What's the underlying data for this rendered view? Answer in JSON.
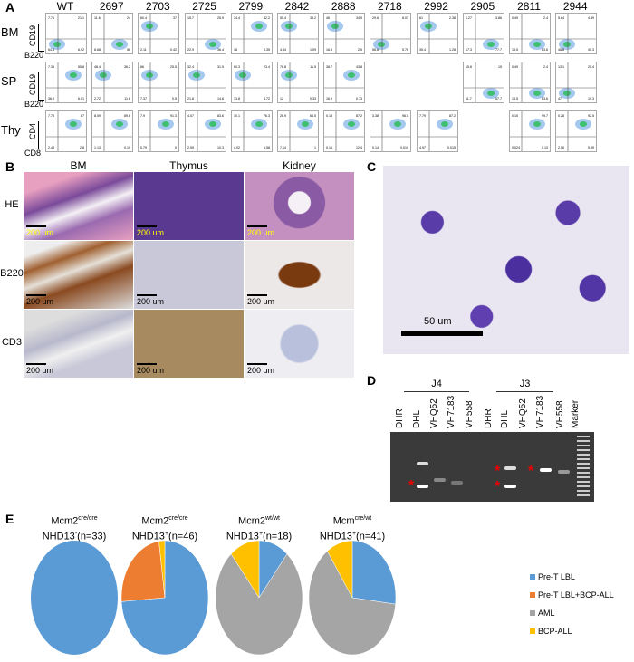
{
  "panels": {
    "a": "A",
    "b": "B",
    "c": "C",
    "d": "D",
    "e": "E"
  },
  "flow": {
    "samples": [
      "WT",
      "2697",
      "2703",
      "2725",
      "2799",
      "2842",
      "2888",
      "2718",
      "2992",
      "2905",
      "2811",
      "2944"
    ],
    "rows": [
      {
        "label": "BM",
        "y_axis": "CD19",
        "x_axis": "B220",
        "quadrants": [
          [
            7.76,
            21.1,
            64.3,
            6.92
          ],
          [
            11.6,
            24.0,
            8.68,
            56.0
          ],
          [
            60.4,
            37.0,
            2.11,
            0.42
          ],
          [
            15.7,
            25.9,
            22.9,
            36.4
          ],
          [
            34.4,
            42.2,
            18.0,
            5.35
          ],
          [
            55.4,
            39.2,
            4.44,
            1.09
          ],
          [
            46.0,
            34.9,
            16.8,
            2.5
          ],
          [
            29.6,
            8.03,
            56.6,
            5.76
          ],
          [
            61.0,
            2.38,
            35.4,
            1.28
          ],
          [
            1.27,
            3.86,
            17.3,
            77.7
          ],
          [
            0.49,
            2.4,
            13.5,
            83.6
          ],
          [
            5.64,
            4.89,
            48.8,
            40.3
          ]
        ]
      },
      {
        "label": "SP",
        "y_axis": "CD19",
        "x_axis": "B220",
        "quadrants": [
          [
            7.35,
            55.8,
            36.9,
            6.01
          ],
          [
            48.4,
            36.2,
            2.72,
            11.6
          ],
          [
            66.0,
            25.5,
            7.37,
            0.5
          ],
          [
            32.4,
            31.5,
            21.8,
            14.6
          ],
          [
            60.3,
            23.4,
            13.8,
            3.72
          ],
          [
            76.8,
            11.5,
            12.0,
            0.33
          ],
          [
            38.7,
            43.8,
            16.9,
            0.73
          ],
          null,
          null,
          [
            15.6,
            15.0,
            11.7,
            57.7
          ],
          [
            0.49,
            2.4,
            13.5,
            83.6
          ],
          [
            13.1,
            20.4,
            47.0,
            19.3
          ]
        ]
      },
      {
        "label": "Thy",
        "y_axis": "CD4",
        "x_axis": "CD8",
        "quadrants": [
          [
            7.75,
            87.0,
            2.43,
            2.8
          ],
          [
            8.09,
            89.6,
            1.13,
            0.19
          ],
          [
            7.9,
            91.3,
            0.79,
            0
          ],
          [
            4.07,
            83.6,
            2.59,
            10.3
          ],
          [
            10.1,
            76.3,
            4.02,
            6.58
          ],
          [
            26.9,
            65.5,
            7.14,
            1.0
          ],
          [
            0.18,
            87.2,
            0.16,
            12.4
          ],
          [
            3.38,
            96.5,
            0.14,
            0.019
          ],
          [
            7.79,
            87.2,
            4.97,
            0.015
          ],
          null,
          [
            0.15,
            99.7,
            0.024,
            0.13
          ],
          [
            0.28,
            92.5,
            2.06,
            5.89
          ]
        ]
      }
    ]
  },
  "histology": {
    "columns": [
      "BM",
      "Thymus",
      "Kidney"
    ],
    "rows": [
      "HE",
      "B220",
      "CD3"
    ],
    "scale": "200 um"
  },
  "smear": {
    "scale": "50 um"
  },
  "gel": {
    "groups": [
      "J4",
      "J3"
    ],
    "lanes": [
      "DHR",
      "DHL",
      "VHQ52",
      "VH7183",
      "VH558",
      "DHR",
      "DHL",
      "VHQ52",
      "VH7183",
      "VH558",
      "Marker"
    ],
    "marker": "*"
  },
  "chart_data": {
    "type": "pie",
    "legend_position": "right",
    "categories": [
      "Pre-T LBL",
      "Pre-T LBL+BCP-ALL",
      "AML",
      "BCP-ALL"
    ],
    "colors": [
      "#5b9bd5",
      "#ed7d31",
      "#a5a5a5",
      "#ffc000"
    ],
    "pies": [
      {
        "title_main": "Mcm2",
        "title_sup": "cre/cre",
        "title_line2": "NHD13",
        "title_line2_sup": "-",
        "n_label": "(n=33)",
        "values": [
          33,
          0,
          0,
          0
        ]
      },
      {
        "title_main": "Mcm2",
        "title_sup": "cre/cre",
        "title_line2": "NHD13",
        "title_line2_sup": "+",
        "n_label": "(n=46)",
        "values": [
          34,
          11,
          0,
          1
        ]
      },
      {
        "title_main": "Mcm2",
        "title_sup": "wt/wt",
        "title_line2": "NHD13",
        "title_line2_sup": "+",
        "n_label": "(n=18)",
        "values": [
          2,
          0,
          14,
          2
        ]
      },
      {
        "title_main": "Mcm",
        "title_sup": "cre/wt",
        "title_line2": "NHD13",
        "title_line2_sup": "+",
        "n_label": "(n=41)",
        "values": [
          11,
          0,
          26,
          4
        ]
      }
    ]
  }
}
